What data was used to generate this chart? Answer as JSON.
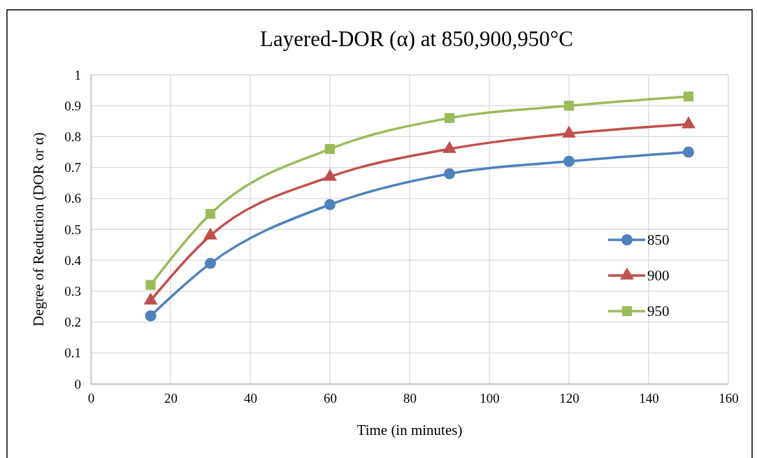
{
  "chart_data": {
    "type": "line",
    "title": "Layered-DOR (α) at 850,900,950°C",
    "xlabel": "Time (in minutes)",
    "ylabel": "Degree of Reduction (DOR or α)",
    "x": [
      15,
      30,
      60,
      90,
      120,
      150
    ],
    "series": [
      {
        "name": "850",
        "color": "#4f81bd",
        "marker": "circle",
        "values": [
          0.22,
          0.39,
          0.58,
          0.68,
          0.72,
          0.75
        ]
      },
      {
        "name": "900",
        "color": "#c0504d",
        "marker": "triangle",
        "values": [
          0.27,
          0.48,
          0.67,
          0.76,
          0.81,
          0.84
        ]
      },
      {
        "name": "950",
        "color": "#9bbb59",
        "marker": "square",
        "values": [
          0.32,
          0.55,
          0.76,
          0.86,
          0.9,
          0.93
        ]
      }
    ],
    "xlim": [
      0,
      160
    ],
    "xticks": [
      0,
      20,
      40,
      60,
      80,
      100,
      120,
      140,
      160
    ],
    "ylim": [
      0,
      1
    ],
    "yticks": [
      0,
      0.1,
      0.2,
      0.3,
      0.4,
      0.5,
      0.6,
      0.7,
      0.8,
      0.9,
      1
    ],
    "grid": true,
    "legend": "right",
    "line_style": "solid"
  }
}
